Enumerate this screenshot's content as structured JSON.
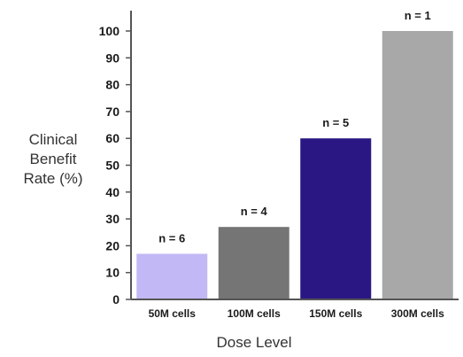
{
  "chart_data": {
    "type": "bar",
    "categories": [
      "50M cells",
      "100M cells",
      "150M cells",
      "300M cells"
    ],
    "values": [
      17,
      27,
      60,
      100
    ],
    "data_labels": [
      "n = 6",
      "n = 4",
      "n = 5",
      "n = 1"
    ],
    "bar_colors": [
      "#c2b8f5",
      "#757575",
      "#2a1784",
      "#a8a8a8"
    ],
    "xlabel": "Dose Level",
    "ylabel_lines": [
      "Clinical",
      "Benefit",
      "Rate (%)"
    ],
    "ylim": [
      0,
      100
    ],
    "yticks": [
      0,
      10,
      20,
      30,
      40,
      50,
      60,
      70,
      80,
      90,
      100
    ],
    "grid": false,
    "legend": "none"
  }
}
